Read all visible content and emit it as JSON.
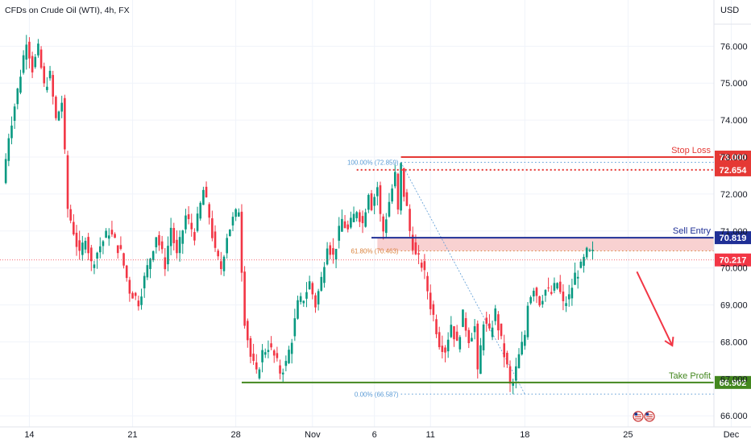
{
  "header": {
    "title": "CFDs on Crude Oil (WTI), 4h, FX"
  },
  "colors": {
    "up": "#089981",
    "down": "#f23645",
    "stop": "#e53935",
    "entry": "#1f2f96",
    "target": "#43871f",
    "fib": "#5b9bd5",
    "fib61": "#d9803a",
    "arrow": "#f23645"
  },
  "chart_data": {
    "type": "candlestick",
    "currency_label": "USD",
    "ylim": [
      65.7,
      77.25
    ],
    "y_ticks": [
      "76.000",
      "75.000",
      "74.000",
      "73.000",
      "72.000",
      "71.000",
      "70.000",
      "69.000",
      "68.000",
      "67.000",
      "66.000"
    ],
    "x_ticks": [
      {
        "label": "14",
        "idx": 9
      },
      {
        "label": "21",
        "idx": 44
      },
      {
        "label": "28",
        "idx": 79
      },
      {
        "label": "Nov",
        "idx": 105
      },
      {
        "label": "6",
        "idx": 126
      },
      {
        "label": "11",
        "idx": 145
      },
      {
        "label": "18",
        "idx": 177
      },
      {
        "label": "25",
        "idx": 212
      },
      {
        "label": "Dec",
        "idx": 247
      }
    ],
    "anchors": [
      [
        0,
        72.3
      ],
      [
        2,
        73.6
      ],
      [
        5,
        74.8
      ],
      [
        8,
        76.2
      ],
      [
        10,
        75.4
      ],
      [
        12,
        75.9
      ],
      [
        14,
        74.9
      ],
      [
        16,
        75.2
      ],
      [
        18,
        74.0
      ],
      [
        20,
        74.5
      ],
      [
        22,
        71.6
      ],
      [
        24,
        71.0
      ],
      [
        26,
        70.3
      ],
      [
        28,
        70.9
      ],
      [
        30,
        70.1
      ],
      [
        33,
        70.6
      ],
      [
        36,
        71.0
      ],
      [
        40,
        70.4
      ],
      [
        43,
        69.4
      ],
      [
        46,
        69.1
      ],
      [
        49,
        70.0
      ],
      [
        52,
        70.9
      ],
      [
        55,
        70.1
      ],
      [
        57,
        71.1
      ],
      [
        59,
        70.3
      ],
      [
        62,
        71.4
      ],
      [
        65,
        70.9
      ],
      [
        68,
        72.1
      ],
      [
        70,
        71.4
      ],
      [
        72,
        70.4
      ],
      [
        74,
        70.0
      ],
      [
        76,
        70.9
      ],
      [
        78,
        71.3
      ],
      [
        80,
        71.6
      ],
      [
        81,
        70.0
      ],
      [
        82,
        68.6
      ],
      [
        84,
        67.6
      ],
      [
        86,
        67.1
      ],
      [
        88,
        67.7
      ],
      [
        90,
        67.9
      ],
      [
        92,
        67.6
      ],
      [
        94,
        67.2
      ],
      [
        96,
        67.4
      ],
      [
        98,
        68.1
      ],
      [
        100,
        69.0
      ],
      [
        102,
        69.2
      ],
      [
        104,
        69.6
      ],
      [
        106,
        69.0
      ],
      [
        108,
        69.7
      ],
      [
        110,
        70.7
      ],
      [
        112,
        70.3
      ],
      [
        115,
        71.3
      ],
      [
        117,
        71.0
      ],
      [
        120,
        71.6
      ],
      [
        122,
        71.2
      ],
      [
        124,
        72.1
      ],
      [
        125,
        71.7
      ],
      [
        127,
        72.2
      ],
      [
        128,
        71.4
      ],
      [
        129,
        71.0
      ],
      [
        131,
        71.8
      ],
      [
        133,
        72.5
      ],
      [
        134,
        71.5
      ],
      [
        135,
        72.75
      ],
      [
        136,
        72.0
      ],
      [
        137,
        71.6
      ],
      [
        138,
        71.0
      ],
      [
        140,
        70.3
      ],
      [
        142,
        70.1
      ],
      [
        143,
        69.8
      ],
      [
        145,
        69.0
      ],
      [
        146,
        68.7
      ],
      [
        148,
        68.0
      ],
      [
        150,
        67.8
      ],
      [
        152,
        68.5
      ],
      [
        154,
        67.9
      ],
      [
        156,
        68.7
      ],
      [
        158,
        68.1
      ],
      [
        160,
        68.4
      ],
      [
        161,
        67.1
      ],
      [
        163,
        68.6
      ],
      [
        165,
        68.2
      ],
      [
        167,
        68.8
      ],
      [
        169,
        68.0
      ],
      [
        171,
        67.3
      ],
      [
        172,
        66.8
      ],
      [
        173,
        66.9
      ],
      [
        175,
        67.6
      ],
      [
        177,
        68.2
      ],
      [
        178,
        69.1
      ],
      [
        180,
        69.5
      ],
      [
        182,
        69.1
      ],
      [
        184,
        69.4
      ],
      [
        186,
        69.3
      ],
      [
        188,
        69.6
      ],
      [
        190,
        69.0
      ],
      [
        192,
        69.2
      ],
      [
        194,
        69.8
      ],
      [
        196,
        70.0
      ],
      [
        198,
        70.4
      ],
      [
        200,
        70.37
      ]
    ],
    "levels": [
      {
        "name": "Stop Loss",
        "price": 73.0,
        "label": "73.000",
        "color": "stop"
      },
      {
        "name": "",
        "price": 72.654,
        "label": "72.654",
        "color": "stop",
        "dotted": true
      },
      {
        "name": "Sell Entry",
        "price": 70.819,
        "label": "70.819",
        "color": "entry"
      },
      {
        "name": "",
        "price": 70.217,
        "label": "70.217",
        "color": "down",
        "last_price": true
      },
      {
        "name": "Take Profit",
        "price": 66.902,
        "label": "66.902",
        "color": "target"
      }
    ],
    "entry_zone": [
      70.463,
      70.819
    ],
    "fib": {
      "from_idx": 135,
      "to_idx": 177,
      "levels": [
        {
          "label": "100.00% (72.859)",
          "price": 72.859,
          "color": "fib"
        },
        {
          "label": "61.80% (70.463)",
          "price": 70.463,
          "color": "fib61"
        },
        {
          "label": "0.00% (66.587)",
          "price": 66.587,
          "color": "fib"
        }
      ]
    },
    "arrow": {
      "from_idx": 215,
      "from_price": 69.9,
      "to_idx": 227,
      "to_price": 67.9
    },
    "event_flags": 2
  }
}
